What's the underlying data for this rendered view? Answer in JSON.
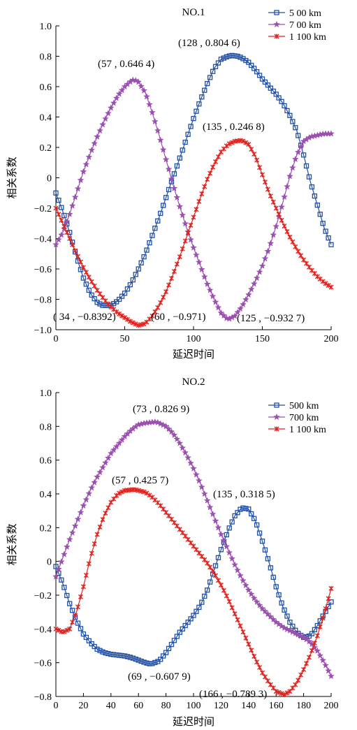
{
  "chart_data": [
    {
      "type": "line",
      "title": "NO.1",
      "xlabel": "延迟时间",
      "ylabel": "相关系数",
      "xlim": [
        0,
        200
      ],
      "ylim": [
        -1.0,
        1.0
      ],
      "xticks": [
        "0",
        "50",
        "100",
        "150",
        "200"
      ],
      "yticks": [
        "1.0",
        "0.8",
        "0.6",
        "0.4",
        "0.2",
        "0",
        "-0.2",
        "-0.4",
        "-0.6",
        "-0.8",
        "-1.0"
      ],
      "grid": false,
      "legend_position": "top-right",
      "series": [
        {
          "name": "5 00 km",
          "color": "#1f4fa8",
          "marker": "square",
          "points": [
            [
              0,
              -0.1
            ],
            [
              5,
              -0.22
            ],
            [
              10,
              -0.36
            ],
            [
              15,
              -0.52
            ],
            [
              20,
              -0.66
            ],
            [
              25,
              -0.76
            ],
            [
              30,
              -0.82
            ],
            [
              34,
              -0.84
            ],
            [
              40,
              -0.84
            ],
            [
              45,
              -0.81
            ],
            [
              50,
              -0.76
            ],
            [
              55,
              -0.69
            ],
            [
              60,
              -0.6
            ],
            [
              65,
              -0.5
            ],
            [
              70,
              -0.38
            ],
            [
              75,
              -0.26
            ],
            [
              80,
              -0.13
            ],
            [
              85,
              0.0
            ],
            [
              90,
              0.13
            ],
            [
              95,
              0.26
            ],
            [
              100,
              0.39
            ],
            [
              105,
              0.51
            ],
            [
              110,
              0.62
            ],
            [
              115,
              0.72
            ],
            [
              120,
              0.78
            ],
            [
              125,
              0.8
            ],
            [
              128,
              0.805
            ],
            [
              132,
              0.8
            ],
            [
              135,
              0.79
            ],
            [
              140,
              0.76
            ],
            [
              145,
              0.71
            ],
            [
              150,
              0.65
            ],
            [
              155,
              0.6
            ],
            [
              160,
              0.55
            ],
            [
              165,
              0.49
            ],
            [
              170,
              0.41
            ],
            [
              175,
              0.31
            ],
            [
              180,
              0.15
            ],
            [
              185,
              -0.03
            ],
            [
              190,
              -0.18
            ],
            [
              195,
              -0.33
            ],
            [
              200,
              -0.44
            ]
          ]
        },
        {
          "name": "7 00 km",
          "color": "#9b4fb0",
          "marker": "star",
          "points": [
            [
              0,
              -0.44
            ],
            [
              5,
              -0.36
            ],
            [
              10,
              -0.24
            ],
            [
              15,
              -0.1
            ],
            [
              20,
              0.04
            ],
            [
              25,
              0.16
            ],
            [
              30,
              0.27
            ],
            [
              35,
              0.37
            ],
            [
              40,
              0.46
            ],
            [
              45,
              0.54
            ],
            [
              50,
              0.6
            ],
            [
              55,
              0.64
            ],
            [
              57,
              0.646
            ],
            [
              60,
              0.63
            ],
            [
              65,
              0.56
            ],
            [
              70,
              0.43
            ],
            [
              75,
              0.28
            ],
            [
              80,
              0.12
            ],
            [
              85,
              -0.04
            ],
            [
              90,
              -0.19
            ],
            [
              95,
              -0.33
            ],
            [
              100,
              -0.46
            ],
            [
              105,
              -0.58
            ],
            [
              110,
              -0.7
            ],
            [
              115,
              -0.8
            ],
            [
              120,
              -0.89
            ],
            [
              125,
              -0.933
            ],
            [
              130,
              -0.91
            ],
            [
              135,
              -0.85
            ],
            [
              140,
              -0.77
            ],
            [
              145,
              -0.68
            ],
            [
              150,
              -0.58
            ],
            [
              155,
              -0.46
            ],
            [
              160,
              -0.32
            ],
            [
              165,
              -0.16
            ],
            [
              170,
              0.01
            ],
            [
              175,
              0.15
            ],
            [
              180,
              0.24
            ],
            [
              185,
              0.27
            ],
            [
              190,
              0.28
            ],
            [
              195,
              0.29
            ],
            [
              200,
              0.29
            ]
          ]
        },
        {
          "name": "1 100 km",
          "color": "#e0231f",
          "marker": "x",
          "points": [
            [
              0,
              -0.2
            ],
            [
              5,
              -0.3
            ],
            [
              10,
              -0.4
            ],
            [
              15,
              -0.5
            ],
            [
              20,
              -0.59
            ],
            [
              25,
              -0.67
            ],
            [
              30,
              -0.74
            ],
            [
              35,
              -0.8
            ],
            [
              40,
              -0.85
            ],
            [
              45,
              -0.89
            ],
            [
              50,
              -0.92
            ],
            [
              55,
              -0.95
            ],
            [
              60,
              -0.971
            ],
            [
              65,
              -0.96
            ],
            [
              70,
              -0.91
            ],
            [
              75,
              -0.84
            ],
            [
              80,
              -0.75
            ],
            [
              85,
              -0.64
            ],
            [
              90,
              -0.52
            ],
            [
              95,
              -0.39
            ],
            [
              100,
              -0.26
            ],
            [
              105,
              -0.13
            ],
            [
              110,
              -0.01
            ],
            [
              115,
              0.09
            ],
            [
              120,
              0.17
            ],
            [
              125,
              0.22
            ],
            [
              130,
              0.24
            ],
            [
              135,
              0.247
            ],
            [
              140,
              0.22
            ],
            [
              145,
              0.14
            ],
            [
              150,
              0.02
            ],
            [
              155,
              -0.1
            ],
            [
              160,
              -0.2
            ],
            [
              165,
              -0.3
            ],
            [
              170,
              -0.39
            ],
            [
              175,
              -0.47
            ],
            [
              180,
              -0.54
            ],
            [
              185,
              -0.6
            ],
            [
              190,
              -0.65
            ],
            [
              195,
              -0.69
            ],
            [
              200,
              -0.72
            ]
          ]
        }
      ],
      "annotations": [
        {
          "text": "(57 , 0.646 4)",
          "x": 57,
          "y": 0.6464
        },
        {
          "text": "(128 , 0.804 6)",
          "x": 128,
          "y": 0.8046
        },
        {
          "text": "(135 , 0.246 8)",
          "x": 135,
          "y": 0.2468
        },
        {
          "text": "( 34 , −0.8392)",
          "x": 34,
          "y": -0.8392
        },
        {
          "text": "(60 , −0.971)",
          "x": 60,
          "y": -0.971
        },
        {
          "text": "(125 , −0.932 7)",
          "x": 125,
          "y": -0.9327
        }
      ]
    },
    {
      "type": "line",
      "title": "NO.2",
      "xlabel": "延迟时间",
      "ylabel": "相关系数",
      "xlim": [
        0,
        200
      ],
      "ylim": [
        -0.8,
        1.0
      ],
      "xticks": [
        "0",
        "20",
        "40",
        "60",
        "80",
        "100",
        "120",
        "140",
        "160",
        "180",
        "200"
      ],
      "yticks": [
        "1.0",
        "0.8",
        "0.6",
        "0.4",
        "0.2",
        "0",
        "-0.2",
        "-0.4",
        "-0.6",
        "-0.8"
      ],
      "grid": false,
      "legend_position": "top-right",
      "series": [
        {
          "name": "500 km",
          "color": "#1f4fa8",
          "marker": "square",
          "points": [
            [
              0,
              -0.03
            ],
            [
              5,
              -0.13
            ],
            [
              10,
              -0.25
            ],
            [
              15,
              -0.35
            ],
            [
              20,
              -0.43
            ],
            [
              25,
              -0.48
            ],
            [
              30,
              -0.52
            ],
            [
              35,
              -0.54
            ],
            [
              40,
              -0.55
            ],
            [
              45,
              -0.555
            ],
            [
              50,
              -0.56
            ],
            [
              55,
              -0.57
            ],
            [
              60,
              -0.585
            ],
            [
              65,
              -0.6
            ],
            [
              69,
              -0.608
            ],
            [
              75,
              -0.59
            ],
            [
              80,
              -0.54
            ],
            [
              85,
              -0.48
            ],
            [
              90,
              -0.42
            ],
            [
              95,
              -0.37
            ],
            [
              100,
              -0.32
            ],
            [
              105,
              -0.26
            ],
            [
              110,
              -0.17
            ],
            [
              115,
              -0.05
            ],
            [
              120,
              0.07
            ],
            [
              125,
              0.18
            ],
            [
              130,
              0.27
            ],
            [
              135,
              0.318
            ],
            [
              140,
              0.31
            ],
            [
              145,
              0.24
            ],
            [
              150,
              0.12
            ],
            [
              155,
              -0.01
            ],
            [
              160,
              -0.15
            ],
            [
              165,
              -0.27
            ],
            [
              170,
              -0.36
            ],
            [
              175,
              -0.42
            ],
            [
              180,
              -0.45
            ],
            [
              185,
              -0.44
            ],
            [
              190,
              -0.38
            ],
            [
              195,
              -0.31
            ],
            [
              200,
              -0.24
            ]
          ]
        },
        {
          "name": "700 km",
          "color": "#9b4fb0",
          "marker": "star",
          "points": [
            [
              0,
              -0.09
            ],
            [
              5,
              0.02
            ],
            [
              10,
              0.13
            ],
            [
              15,
              0.23
            ],
            [
              20,
              0.33
            ],
            [
              25,
              0.42
            ],
            [
              30,
              0.5
            ],
            [
              35,
              0.57
            ],
            [
              40,
              0.64
            ],
            [
              45,
              0.69
            ],
            [
              50,
              0.74
            ],
            [
              55,
              0.78
            ],
            [
              60,
              0.81
            ],
            [
              65,
              0.82
            ],
            [
              73,
              0.827
            ],
            [
              80,
              0.8
            ],
            [
              85,
              0.76
            ],
            [
              90,
              0.7
            ],
            [
              95,
              0.63
            ],
            [
              100,
              0.55
            ],
            [
              105,
              0.46
            ],
            [
              110,
              0.36
            ],
            [
              115,
              0.26
            ],
            [
              120,
              0.16
            ],
            [
              125,
              0.07
            ],
            [
              130,
              -0.02
            ],
            [
              135,
              -0.1
            ],
            [
              140,
              -0.17
            ],
            [
              145,
              -0.23
            ],
            [
              150,
              -0.28
            ],
            [
              155,
              -0.32
            ],
            [
              160,
              -0.36
            ],
            [
              165,
              -0.39
            ],
            [
              170,
              -0.41
            ],
            [
              175,
              -0.43
            ],
            [
              180,
              -0.45
            ],
            [
              185,
              -0.48
            ],
            [
              190,
              -0.53
            ],
            [
              195,
              -0.6
            ],
            [
              200,
              -0.68
            ]
          ]
        },
        {
          "name": "1 100 km",
          "color": "#e0231f",
          "marker": "x",
          "points": [
            [
              0,
              -0.4
            ],
            [
              5,
              -0.42
            ],
            [
              10,
              -0.4
            ],
            [
              15,
              -0.3
            ],
            [
              20,
              -0.15
            ],
            [
              25,
              0.02
            ],
            [
              30,
              0.16
            ],
            [
              35,
              0.27
            ],
            [
              40,
              0.35
            ],
            [
              45,
              0.4
            ],
            [
              50,
              0.42
            ],
            [
              57,
              0.426
            ],
            [
              65,
              0.41
            ],
            [
              70,
              0.38
            ],
            [
              75,
              0.34
            ],
            [
              80,
              0.29
            ],
            [
              85,
              0.24
            ],
            [
              90,
              0.19
            ],
            [
              95,
              0.14
            ],
            [
              100,
              0.09
            ],
            [
              105,
              0.04
            ],
            [
              110,
              -0.01
            ],
            [
              115,
              -0.07
            ],
            [
              120,
              -0.14
            ],
            [
              125,
              -0.22
            ],
            [
              130,
              -0.31
            ],
            [
              135,
              -0.4
            ],
            [
              140,
              -0.49
            ],
            [
              145,
              -0.58
            ],
            [
              150,
              -0.66
            ],
            [
              155,
              -0.72
            ],
            [
              160,
              -0.77
            ],
            [
              166,
              -0.789
            ],
            [
              170,
              -0.77
            ],
            [
              175,
              -0.72
            ],
            [
              180,
              -0.64
            ],
            [
              185,
              -0.55
            ],
            [
              190,
              -0.44
            ],
            [
              195,
              -0.31
            ],
            [
              200,
              -0.16
            ]
          ]
        }
      ],
      "annotations": [
        {
          "text": "(73 , 0.826 9)",
          "x": 73,
          "y": 0.8269
        },
        {
          "text": "(57 , 0.425 7)",
          "x": 57,
          "y": 0.4257
        },
        {
          "text": "(135 , 0.318 5)",
          "x": 135,
          "y": 0.3185
        },
        {
          "text": "(69 , −0.607 9)",
          "x": 69,
          "y": -0.6079
        },
        {
          "text": "(166 , −0.789 3)",
          "x": 166,
          "y": -0.7893
        }
      ]
    }
  ]
}
